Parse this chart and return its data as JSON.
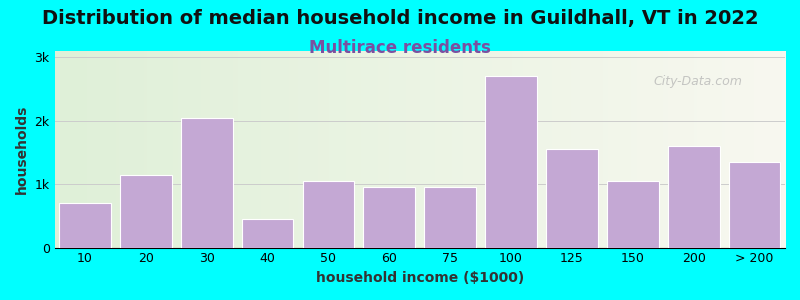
{
  "title": "Distribution of median household income in Guildhall, VT in 2022",
  "subtitle": "Multirace residents",
  "xlabel": "household income ($1000)",
  "ylabel": "households",
  "background_color": "#00FFFF",
  "plot_bg_colors": [
    "#e8f5e5",
    "#f5f5f0"
  ],
  "bar_color": "#C4A8D4",
  "bar_edge_color": "#ffffff",
  "categories": [
    "10",
    "20",
    "30",
    "40",
    "50",
    "60",
    "75",
    "100",
    "125",
    "150",
    "200",
    "> 200"
  ],
  "values": [
    700,
    1150,
    2050,
    450,
    1050,
    950,
    950,
    2700,
    1550,
    1050,
    1600,
    1350
  ],
  "bar_widths": [
    1,
    1,
    1,
    1,
    1,
    1,
    1,
    1,
    1,
    1,
    1,
    1
  ],
  "ylim": [
    0,
    3100
  ],
  "yticks": [
    0,
    1000,
    2000,
    3000
  ],
  "ytick_labels": [
    "0",
    "1k",
    "2k",
    "3k"
  ],
  "title_fontsize": 14,
  "subtitle_fontsize": 12,
  "subtitle_color": "#7B4FA0",
  "axis_label_fontsize": 10,
  "watermark": "City-Data.com"
}
